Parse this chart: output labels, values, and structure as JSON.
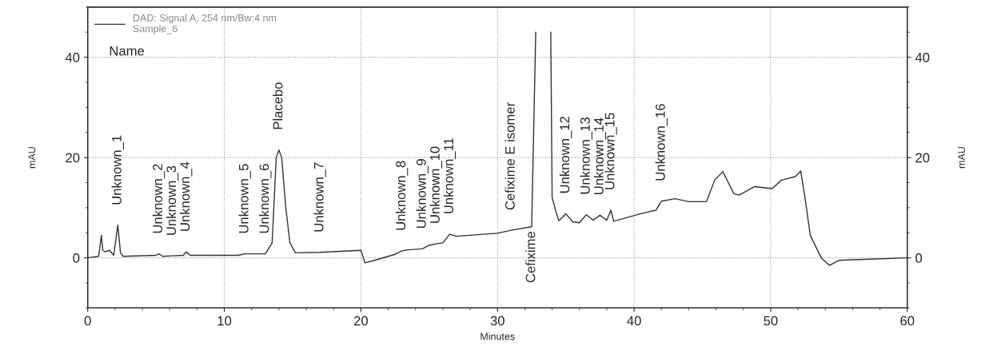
{
  "chart_data": {
    "type": "line",
    "xlabel": "Minutes",
    "ylabel": "mAU",
    "y2label": "mAU",
    "xlim": [
      0,
      60
    ],
    "xticks": [
      0,
      10,
      20,
      30,
      40,
      50,
      60
    ],
    "ylim": [
      -10,
      50
    ],
    "yticks": [
      0,
      20,
      40
    ],
    "y2lim": [
      -10,
      50
    ],
    "y2ticks": [
      0,
      20,
      40
    ],
    "grid": true,
    "legend": "top left",
    "series": [
      {
        "name": "DAD: Signal A, 254 nm/Bw:4 nm\nSample_6",
        "color": "#333333",
        "x": [
          0,
          0.8,
          1.0,
          1.1,
          1.3,
          1.6,
          1.9,
          2.2,
          2.4,
          2.6,
          5.0,
          5.2,
          5.5,
          6.2,
          7.0,
          7.2,
          7.5,
          11.0,
          11.5,
          13.0,
          13.5,
          13.8,
          14.0,
          14.2,
          14.5,
          14.8,
          15.2,
          17.0,
          20.0,
          20.3,
          21.0,
          22.5,
          23.0,
          23.5,
          24.5,
          25.0,
          25.5,
          26.0,
          26.5,
          27.0,
          30.0,
          31.0,
          32.5,
          32.8,
          32.9,
          33.8,
          33.9,
          34.0,
          34.3,
          34.5,
          35.0,
          35.5,
          36.0,
          36.5,
          37.0,
          37.5,
          38.0,
          38.3,
          38.5,
          40.5,
          41.6,
          42.0,
          43.0,
          44.0,
          45.3,
          45.9,
          46.5,
          47.3,
          47.7,
          48.8,
          50.1,
          50.8,
          51.8,
          52.2,
          52.5,
          52.9,
          53.7,
          54.3,
          55.0,
          57.0,
          60.0
        ],
        "values": [
          0,
          0.3,
          4.5,
          1.5,
          1.2,
          1.5,
          0.5,
          6.5,
          1.0,
          0.3,
          0.5,
          0.8,
          0.3,
          0.4,
          0.5,
          1.2,
          0.5,
          0.5,
          0.8,
          0.8,
          3,
          20,
          21.5,
          20,
          10,
          3,
          1,
          1.1,
          1.5,
          -1.0,
          -0.5,
          0.7,
          1.4,
          1.6,
          1.8,
          2.5,
          2.8,
          3.0,
          4.7,
          4.3,
          4.9,
          5.5,
          6.2,
          45,
          null,
          null,
          45,
          12,
          9,
          7.4,
          8.8,
          7.2,
          7.0,
          8.6,
          7.5,
          8.5,
          7.5,
          9.5,
          7.3,
          8.8,
          9.5,
          11.3,
          11.8,
          11.2,
          11.2,
          15.5,
          17.2,
          12.8,
          12.5,
          14.2,
          13.8,
          15.5,
          16.2,
          17.3,
          12.2,
          4.5,
          0,
          -1.5,
          -0.5,
          -0.3,
          0
        ]
      }
    ],
    "annotations": [
      "Name",
      {
        "text": "Unknown_1",
        "x": 2.2,
        "y": 6.5
      },
      {
        "text": "Unknown_2",
        "x": 5.2,
        "y": 0.8
      },
      {
        "text": "Unknown_3",
        "x": 6.2,
        "y": 0.4
      },
      {
        "text": "Unknown_4",
        "x": 7.2,
        "y": 1.2
      },
      {
        "text": "Unknown_5",
        "x": 11.5,
        "y": 0.8
      },
      {
        "text": "Unknown_6",
        "x": 13.0,
        "y": 0.8
      },
      {
        "text": "Placebo",
        "x": 14.0,
        "y": 21.5
      },
      {
        "text": "Unknown_7",
        "x": 17.0,
        "y": 1.1
      },
      {
        "text": "Unknown_8",
        "x": 23.0,
        "y": 1.4
      },
      {
        "text": "Unknown_9",
        "x": 24.5,
        "y": 1.8
      },
      {
        "text": "Unknown_10",
        "x": 25.5,
        "y": 2.8
      },
      {
        "text": "Unknown_11",
        "x": 26.5,
        "y": 4.7
      },
      {
        "text": "Cefixime E isomer",
        "x": 31.0,
        "y": 5.5
      },
      {
        "text": "Cefixime",
        "x": 32.5,
        "y": 6.2
      },
      {
        "text": "Unknown_12",
        "x": 35.0,
        "y": 8.8
      },
      {
        "text": "Unknown_13",
        "x": 36.5,
        "y": 8.6
      },
      {
        "text": "Unknown_14",
        "x": 37.5,
        "y": 8.5
      },
      {
        "text": "Unknown_15",
        "x": 38.3,
        "y": 9.5
      },
      {
        "text": "Unknown_16",
        "x": 42.0,
        "y": 11.3
      }
    ]
  }
}
